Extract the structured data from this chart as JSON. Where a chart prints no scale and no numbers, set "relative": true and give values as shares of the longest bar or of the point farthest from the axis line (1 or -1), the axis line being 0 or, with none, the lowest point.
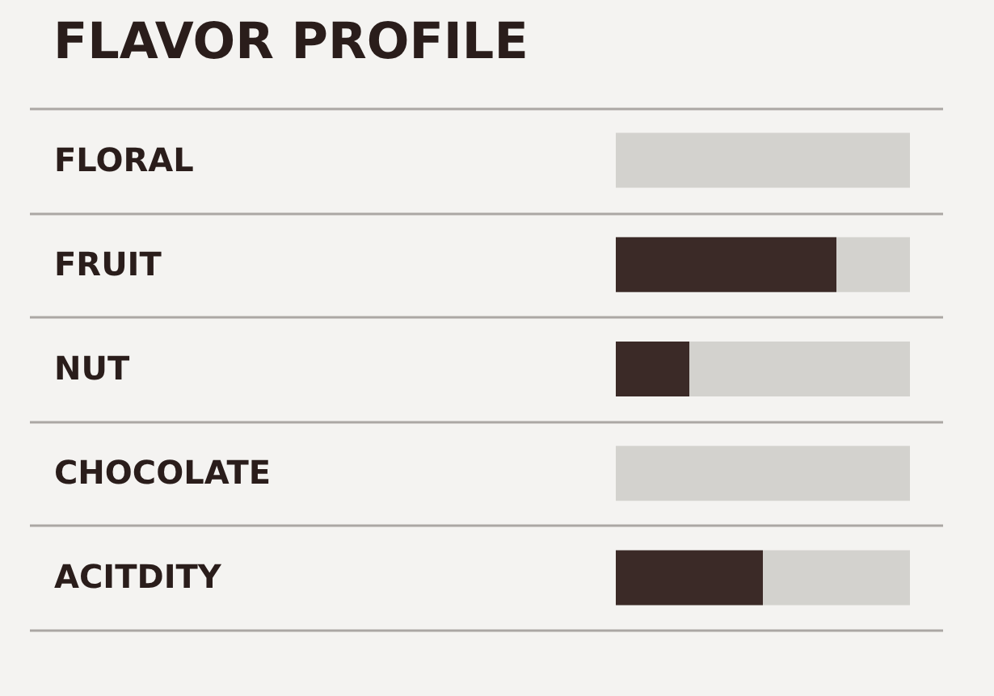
{
  "chart_data": {
    "type": "bar",
    "orientation": "horizontal",
    "stacked": true,
    "relative": true,
    "title": "FLAVOR PROFILE",
    "categories": [
      "FLORAL",
      "FRUIT",
      "NUT",
      "CHOCOLATE",
      "ACITDITY"
    ],
    "series": [
      {
        "color": "#3b2a27",
        "values": [
          0,
          0.75,
          0.25,
          0,
          0.5
        ]
      },
      {
        "color": "#d3d2ce",
        "values": [
          1,
          0.25,
          0.75,
          1,
          0.5
        ]
      }
    ],
    "grid": "y"
  }
}
